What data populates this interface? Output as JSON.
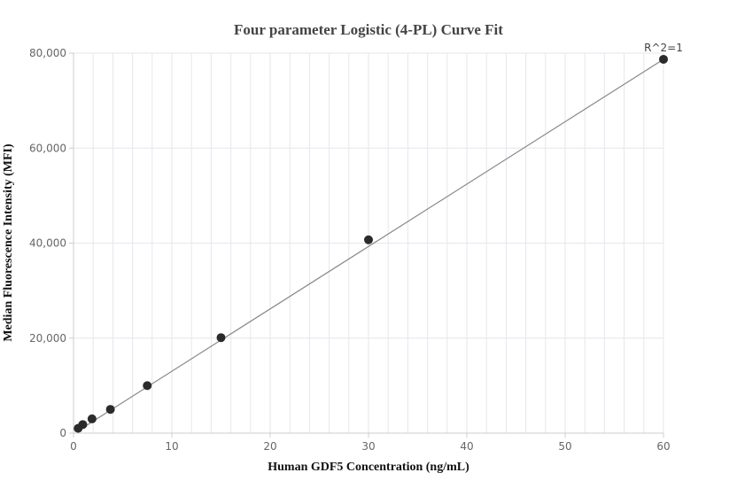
{
  "chart_data": {
    "type": "scatter",
    "title": "Four parameter Logistic (4-PL) Curve Fit",
    "xlabel": "Human GDF5 Concentration (ng/mL)",
    "ylabel": "Median Fluorescence Intensity (MFI)",
    "xlim": [
      0,
      60
    ],
    "ylim": [
      0,
      80000
    ],
    "x_ticks": [
      0,
      10,
      20,
      30,
      40,
      50,
      60
    ],
    "x_tick_labels": [
      "0",
      "10",
      "20",
      "30",
      "40",
      "50",
      "60"
    ],
    "y_ticks": [
      0,
      20000,
      40000,
      60000,
      80000
    ],
    "y_tick_labels": [
      "0",
      "20,000",
      "40,000",
      "60,000",
      "80,000"
    ],
    "grid": true,
    "points": {
      "x": [
        0.47,
        0.94,
        1.88,
        3.75,
        7.5,
        15,
        30,
        60
      ],
      "y": [
        1000,
        1800,
        3000,
        5000,
        10000,
        20100,
        40700,
        78700
      ]
    },
    "fit_line": {
      "x": [
        0.47,
        60
      ],
      "y": [
        500,
        78700
      ]
    },
    "annotation": "R^2=1",
    "colors": {
      "marker": "#2b2b2b",
      "fit_line": "#888888",
      "grid": "#e6e6ee",
      "axis": "#cccccc"
    }
  }
}
